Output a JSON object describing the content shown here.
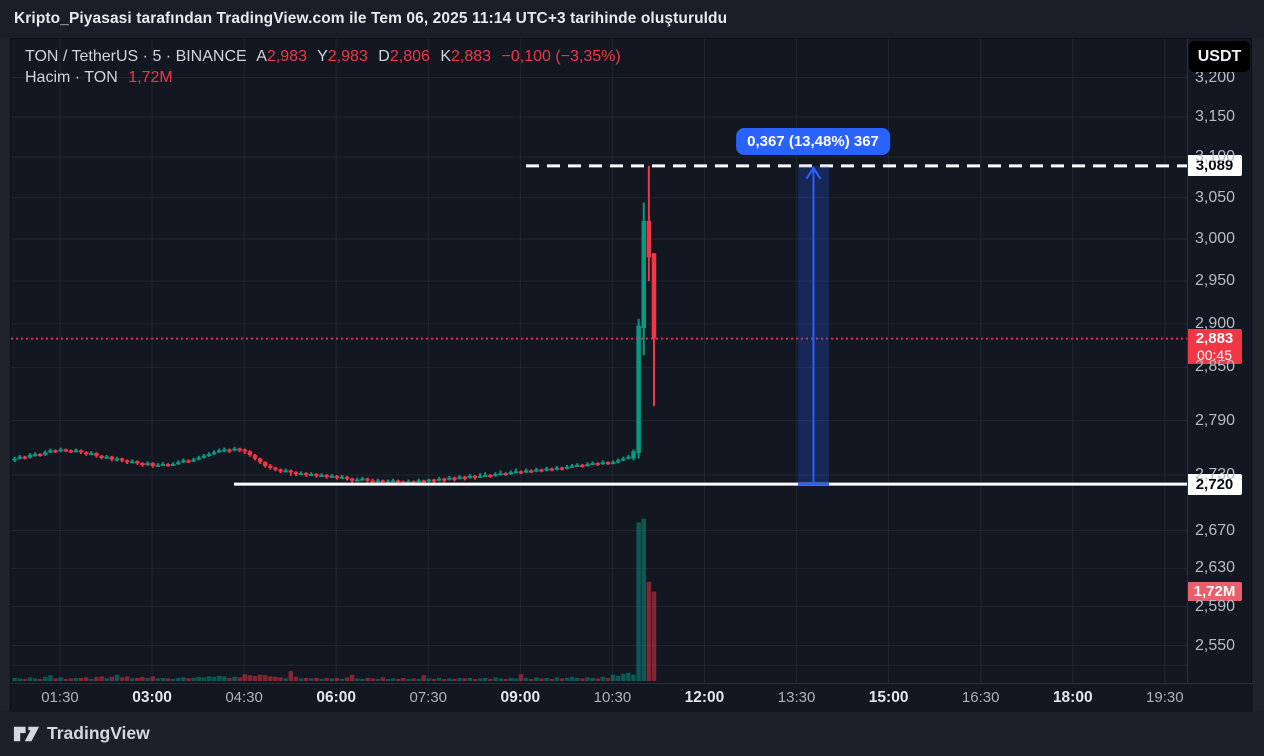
{
  "attribution": {
    "text": "Kripto_Piyasasi tarafından TradingView.com ile Tem 06, 2025 11:14 UTC+3 tarihinde oluşturuldu"
  },
  "toolbar": {
    "currency_button_label": "USDT"
  },
  "legend": {
    "symbol_line": "TON / TetherUS · 5 · BINANCE",
    "open_label": "A",
    "open_value": "2,983",
    "high_label": "Y",
    "high_value": "2,983",
    "low_label": "D",
    "low_value": "2,806",
    "close_label": "K",
    "close_value": "2,883",
    "change_text": "−0,100 (−3,35%)",
    "volume_title": "Hacim · TON",
    "volume_value": "1,72M"
  },
  "price_axis": {
    "ticks": [
      {
        "price": 3200,
        "label": "3,200"
      },
      {
        "price": 3150,
        "label": "3,150"
      },
      {
        "price": 3100,
        "label": "3,100"
      },
      {
        "price": 3050,
        "label": "3,050"
      },
      {
        "price": 3000,
        "label": "3,000"
      },
      {
        "price": 2950,
        "label": "2,950"
      },
      {
        "price": 2900,
        "label": "2,900"
      },
      {
        "price": 2850,
        "label": "2,850"
      },
      {
        "price": 2790,
        "label": "2,790"
      },
      {
        "price": 2730,
        "label": "2,730"
      },
      {
        "price": 2670,
        "label": "2,670"
      },
      {
        "price": 2630,
        "label": "2,630"
      },
      {
        "price": 2590,
        "label": "2,590"
      },
      {
        "price": 2550,
        "label": "2,550"
      },
      {
        "price": 2530,
        "label": ""
      }
    ]
  },
  "time_axis": {
    "ticks": [
      {
        "label": "01:30",
        "bold": false
      },
      {
        "label": "03:00",
        "bold": true
      },
      {
        "label": "04:30",
        "bold": false
      },
      {
        "label": "06:00",
        "bold": true
      },
      {
        "label": "07:30",
        "bold": false
      },
      {
        "label": "09:00",
        "bold": true
      },
      {
        "label": "10:30",
        "bold": false
      },
      {
        "label": "12:00",
        "bold": true
      },
      {
        "label": "13:30",
        "bold": false
      },
      {
        "label": "15:00",
        "bold": true
      },
      {
        "label": "16:30",
        "bold": false
      },
      {
        "label": "18:00",
        "bold": true
      },
      {
        "label": "19:30",
        "bold": false
      }
    ]
  },
  "overlay_labels": {
    "high_line": {
      "price": 3089,
      "label": "3,089"
    },
    "low_line": {
      "price": 2720,
      "label": "2,720"
    },
    "last_price": {
      "price": 2883,
      "label": "2,883",
      "countdown": "00:45"
    },
    "volume": {
      "label": "1,72M"
    }
  },
  "measurement": {
    "label": "0,367 (13,48%) 367",
    "from_price": 2720,
    "to_price": 3089
  },
  "footer": {
    "brand": "TradingView"
  },
  "colors": {
    "up": "#089981",
    "down": "#f23645",
    "accent_blue": "#2962ff",
    "chart_bg": "#131722",
    "frame_bg": "#1e212b",
    "grid": "rgba(197,203,227,0.08)",
    "axis_text": "#b7bbc5",
    "white_label_bg": "#ffffff",
    "last_price_bg": "#f23645",
    "volume_label_bg": "#e7606b"
  },
  "chart_data": {
    "type": "candlestick",
    "title": "TON / TetherUS · 5 · BINANCE",
    "price_note": "prices in thousandths of USDT, displayed with Turkish comma decimal (2883 → 2,883)",
    "volume_note": "volumes in millions of TON",
    "start_time": "00:45",
    "interval_minutes": 5,
    "ylim": [
      2520,
      3210
    ],
    "price_lines": {
      "dashed_high": 3089,
      "solid_low": 2720,
      "last": 2883
    },
    "ohlc_fields": [
      "open",
      "high",
      "low",
      "close",
      "volume_millions"
    ],
    "candles": [
      [
        2746,
        2750,
        2744,
        2748,
        0.06
      ],
      [
        2748,
        2752,
        2747,
        2750,
        0.05
      ],
      [
        2750,
        2751,
        2747,
        2749,
        0.04
      ],
      [
        2749,
        2754,
        2748,
        2752,
        0.07
      ],
      [
        2752,
        2755,
        2750,
        2753,
        0.05
      ],
      [
        2753,
        2754,
        2750,
        2752,
        0.04
      ],
      [
        2752,
        2757,
        2751,
        2755,
        0.08
      ],
      [
        2755,
        2759,
        2754,
        2757,
        0.11
      ],
      [
        2757,
        2758,
        2754,
        2756,
        0.05
      ],
      [
        2756,
        2760,
        2755,
        2758,
        0.07
      ],
      [
        2758,
        2759,
        2755,
        2757,
        0.04
      ],
      [
        2757,
        2758,
        2754,
        2756,
        0.05
      ],
      [
        2756,
        2759,
        2755,
        2757,
        0.06
      ],
      [
        2757,
        2758,
        2753,
        2755,
        0.06
      ],
      [
        2755,
        2756,
        2751,
        2753,
        0.07
      ],
      [
        2753,
        2756,
        2752,
        2754,
        0.04
      ],
      [
        2754,
        2755,
        2749,
        2751,
        0.08
      ],
      [
        2751,
        2752,
        2747,
        2749,
        0.09
      ],
      [
        2749,
        2752,
        2748,
        2750,
        0.05
      ],
      [
        2750,
        2751,
        2745,
        2747,
        0.08
      ],
      [
        2747,
        2750,
        2745,
        2748,
        0.12
      ],
      [
        2748,
        2749,
        2744,
        2746,
        0.07
      ],
      [
        2746,
        2747,
        2742,
        2744,
        0.09
      ],
      [
        2744,
        2747,
        2743,
        2745,
        0.05
      ],
      [
        2745,
        2746,
        2741,
        2743,
        0.06
      ],
      [
        2743,
        2744,
        2739,
        2741,
        0.08
      ],
      [
        2741,
        2745,
        2740,
        2743,
        0.06
      ],
      [
        2743,
        2744,
        2738,
        2740,
        0.09
      ],
      [
        2740,
        2743,
        2739,
        2741,
        0.05
      ],
      [
        2741,
        2744,
        2740,
        2742,
        0.06
      ],
      [
        2742,
        2743,
        2739,
        2741,
        0.05
      ],
      [
        2741,
        2744,
        2740,
        2742,
        0.04
      ],
      [
        2742,
        2746,
        2741,
        2744,
        0.06
      ],
      [
        2744,
        2748,
        2743,
        2746,
        0.07
      ],
      [
        2746,
        2747,
        2743,
        2745,
        0.05
      ],
      [
        2745,
        2749,
        2744,
        2747,
        0.06
      ],
      [
        2747,
        2751,
        2746,
        2749,
        0.08
      ],
      [
        2749,
        2753,
        2748,
        2751,
        0.07
      ],
      [
        2751,
        2755,
        2750,
        2753,
        0.09
      ],
      [
        2753,
        2757,
        2752,
        2755,
        0.08
      ],
      [
        2755,
        2759,
        2754,
        2757,
        0.1
      ],
      [
        2757,
        2760,
        2755,
        2758,
        0.09
      ],
      [
        2758,
        2759,
        2754,
        2757,
        0.06
      ],
      [
        2757,
        2761,
        2756,
        2759,
        0.08
      ],
      [
        2759,
        2760,
        2755,
        2758,
        0.07
      ],
      [
        2758,
        2759,
        2753,
        2756,
        0.13
      ],
      [
        2756,
        2757,
        2750,
        2752,
        0.11
      ],
      [
        2752,
        2753,
        2746,
        2748,
        0.1
      ],
      [
        2748,
        2749,
        2742,
        2744,
        0.12
      ],
      [
        2744,
        2745,
        2738,
        2740,
        0.11
      ],
      [
        2740,
        2742,
        2736,
        2738,
        0.09
      ],
      [
        2738,
        2739,
        2734,
        2736,
        0.08
      ],
      [
        2736,
        2737,
        2732,
        2734,
        0.07
      ],
      [
        2734,
        2737,
        2733,
        2735,
        0.05
      ],
      [
        2735,
        2736,
        2729,
        2733,
        0.19
      ],
      [
        2733,
        2734,
        2729,
        2731,
        0.08
      ],
      [
        2731,
        2734,
        2730,
        2732,
        0.05
      ],
      [
        2732,
        2733,
        2728,
        2730,
        0.06
      ],
      [
        2730,
        2733,
        2729,
        2731,
        0.05
      ],
      [
        2731,
        2732,
        2727,
        2729,
        0.06
      ],
      [
        2729,
        2732,
        2728,
        2730,
        0.04
      ],
      [
        2730,
        2731,
        2726,
        2728,
        0.06
      ],
      [
        2728,
        2731,
        2727,
        2729,
        0.05
      ],
      [
        2729,
        2730,
        2725,
        2727,
        0.06
      ],
      [
        2727,
        2730,
        2726,
        2728,
        0.04
      ],
      [
        2728,
        2729,
        2724,
        2726,
        0.07
      ],
      [
        2726,
        2727,
        2721,
        2724,
        0.12
      ],
      [
        2724,
        2727,
        2723,
        2725,
        0.05
      ],
      [
        2725,
        2728,
        2724,
        2726,
        0.04
      ],
      [
        2726,
        2727,
        2722,
        2724,
        0.06
      ],
      [
        2724,
        2726,
        2721,
        2723,
        0.05
      ],
      [
        2723,
        2726,
        2722,
        2724,
        0.04
      ],
      [
        2724,
        2725,
        2720,
        2722,
        0.07
      ],
      [
        2722,
        2725,
        2721,
        2723,
        0.04
      ],
      [
        2723,
        2726,
        2722,
        2724,
        0.05
      ],
      [
        2724,
        2725,
        2721,
        2723,
        0.04
      ],
      [
        2723,
        2724,
        2719,
        2722,
        0.06
      ],
      [
        2722,
        2725,
        2721,
        2723,
        0.04
      ],
      [
        2723,
        2724,
        2720,
        2722,
        0.05
      ],
      [
        2722,
        2726,
        2721,
        2724,
        0.04
      ],
      [
        2724,
        2725,
        2720,
        2723,
        0.11
      ],
      [
        2723,
        2726,
        2722,
        2725,
        0.05
      ],
      [
        2725,
        2726,
        2721,
        2724,
        0.04
      ],
      [
        2724,
        2728,
        2723,
        2726,
        0.06
      ],
      [
        2726,
        2727,
        2722,
        2725,
        0.04
      ],
      [
        2725,
        2729,
        2724,
        2727,
        0.05
      ],
      [
        2727,
        2728,
        2723,
        2726,
        0.04
      ],
      [
        2726,
        2730,
        2725,
        2728,
        0.06
      ],
      [
        2728,
        2729,
        2724,
        2727,
        0.05
      ],
      [
        2727,
        2731,
        2726,
        2729,
        0.06
      ],
      [
        2729,
        2730,
        2725,
        2728,
        0.04
      ],
      [
        2728,
        2732,
        2727,
        2729,
        0.05
      ],
      [
        2729,
        2733,
        2728,
        2730,
        0.06
      ],
      [
        2730,
        2731,
        2727,
        2729,
        0.04
      ],
      [
        2729,
        2733,
        2728,
        2731,
        0.07
      ],
      [
        2731,
        2735,
        2730,
        2732,
        0.05
      ],
      [
        2732,
        2733,
        2729,
        2731,
        0.04
      ],
      [
        2731,
        2735,
        2730,
        2733,
        0.06
      ],
      [
        2733,
        2737,
        2732,
        2734,
        0.05
      ],
      [
        2734,
        2735,
        2731,
        2733,
        0.13
      ],
      [
        2733,
        2737,
        2732,
        2735,
        0.06
      ],
      [
        2735,
        2736,
        2732,
        2734,
        0.04
      ],
      [
        2734,
        2738,
        2733,
        2736,
        0.07
      ],
      [
        2736,
        2737,
        2733,
        2735,
        0.05
      ],
      [
        2735,
        2739,
        2734,
        2737,
        0.06
      ],
      [
        2737,
        2738,
        2734,
        2736,
        0.04
      ],
      [
        2736,
        2740,
        2735,
        2738,
        0.07
      ],
      [
        2738,
        2739,
        2735,
        2737,
        0.05
      ],
      [
        2737,
        2741,
        2736,
        2739,
        0.06
      ],
      [
        2739,
        2742,
        2738,
        2740,
        0.08
      ],
      [
        2740,
        2743,
        2739,
        2741,
        0.06
      ],
      [
        2741,
        2742,
        2738,
        2740,
        0.05
      ],
      [
        2740,
        2744,
        2739,
        2742,
        0.07
      ],
      [
        2742,
        2745,
        2741,
        2743,
        0.06
      ],
      [
        2743,
        2744,
        2740,
        2742,
        0.05
      ],
      [
        2742,
        2746,
        2741,
        2744,
        0.08
      ],
      [
        2744,
        2745,
        2741,
        2743,
        0.06
      ],
      [
        2743,
        2746,
        2742,
        2744,
        0.12
      ],
      [
        2744,
        2748,
        2743,
        2746,
        0.1
      ],
      [
        2746,
        2750,
        2745,
        2748,
        0.14
      ],
      [
        2748,
        2752,
        2747,
        2750,
        0.16
      ],
      [
        2748,
        2758,
        2746,
        2756,
        0.12
      ],
      [
        2754,
        2906,
        2748,
        2898,
        3.05
      ],
      [
        2895,
        3044,
        2864,
        3022,
        3.12
      ],
      [
        3022,
        3089,
        2950,
        2978,
        1.91
      ],
      [
        2983,
        2983,
        2806,
        2883,
        1.72
      ]
    ]
  }
}
